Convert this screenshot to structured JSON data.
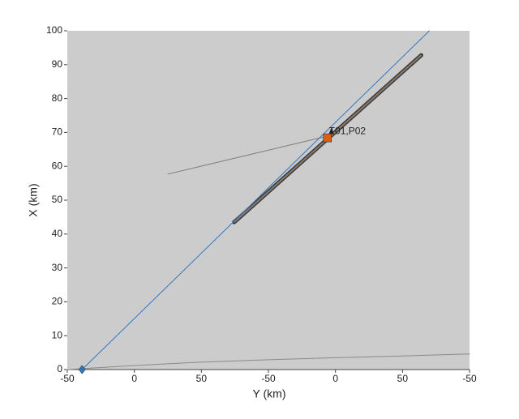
{
  "chart_data": {
    "type": "line",
    "xlabel": "Y (km)",
    "ylabel": "X (km)",
    "xlim": [
      -50,
      250
    ],
    "ylim": [
      0,
      100
    ],
    "xticks": [
      -50,
      0,
      50,
      {
        "value": 100,
        "label": "-50"
      },
      {
        "value": 150,
        "label": "0"
      },
      {
        "value": 200,
        "label": "50"
      },
      {
        "value": 250,
        "label": "-50"
      }
    ],
    "yticks": [
      0,
      10,
      20,
      30,
      40,
      50,
      60,
      70,
      80,
      90,
      100
    ],
    "background": "#cccccc",
    "series": [
      {
        "color": "#8a8a8a",
        "x": [
          -50,
          0,
          50,
          100,
          150,
          200,
          250
        ],
        "values": [
          0,
          1.2,
          2.2,
          2.9,
          3.5,
          4.0,
          4.6
        ]
      },
      {
        "color": "#7a7a7a",
        "x": [
          25,
          144
        ],
        "values": [
          57.7,
          68.9
        ]
      },
      {
        "color": "#3a3a3a",
        "x": [
          74.5,
          214
        ],
        "values": [
          43.5,
          92.8
        ]
      },
      {
        "color": "#2f78c4",
        "x": [
          -39,
          220
        ],
        "values": [
          0,
          100
        ]
      }
    ],
    "markers": [
      {
        "shape": "diamond",
        "color": "#2f78c4",
        "x": -39,
        "y": 0
      },
      {
        "shape": "square",
        "color": "#d4601c",
        "x": 144,
        "y": 68.4
      },
      {
        "shape": "triangle",
        "color": "#222222",
        "x": 147,
        "y": 70.3
      }
    ],
    "annotation": {
      "text": "T01,P02",
      "x": 147,
      "y": 70.3
    }
  }
}
